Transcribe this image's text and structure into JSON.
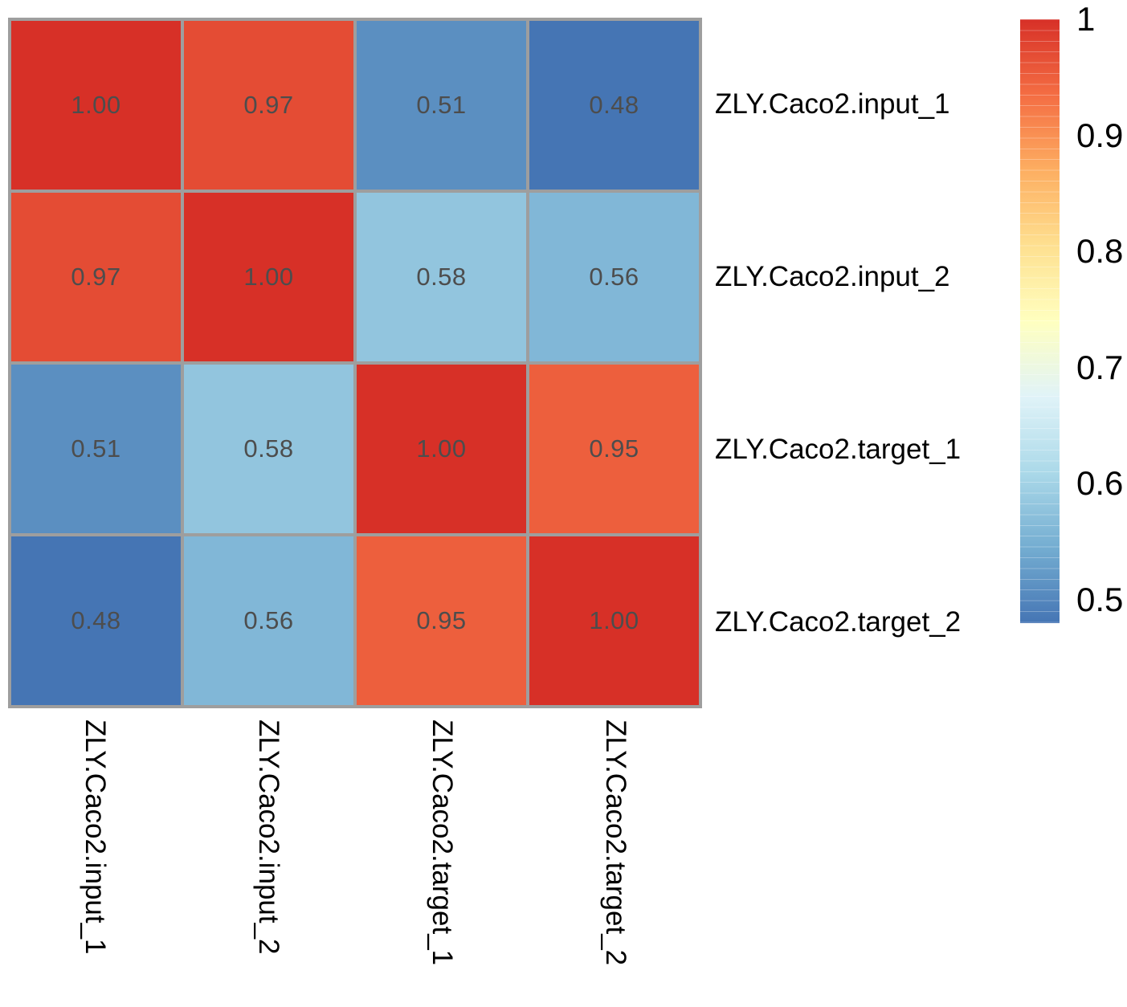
{
  "chart_data": {
    "type": "heatmap",
    "title": "",
    "xlabel": "",
    "ylabel": "",
    "labels": [
      "ZLY.Caco2.input_1",
      "ZLY.Caco2.input_2",
      "ZLY.Caco2.target_1",
      "ZLY.Caco2.target_2"
    ],
    "matrix": [
      [
        1.0,
        0.97,
        0.51,
        0.48
      ],
      [
        0.97,
        1.0,
        0.58,
        0.56
      ],
      [
        0.51,
        0.58,
        1.0,
        0.95
      ],
      [
        0.48,
        0.56,
        0.95,
        1.0
      ]
    ],
    "values_text": [
      [
        "1.00",
        "0.97",
        "0.51",
        "0.48"
      ],
      [
        "0.97",
        "1.00",
        "0.58",
        "0.56"
      ],
      [
        "0.51",
        "0.58",
        "1.00",
        "0.95"
      ],
      [
        "0.48",
        "0.56",
        "0.95",
        "1.00"
      ]
    ],
    "colorbar": {
      "min": 0.48,
      "max": 1.0,
      "ticks": [
        {
          "label": "1",
          "value": 1.0
        },
        {
          "label": "0.9",
          "value": 0.9
        },
        {
          "label": "0.8",
          "value": 0.8
        },
        {
          "label": "0.7",
          "value": 0.7
        },
        {
          "label": "0.6",
          "value": 0.6
        },
        {
          "label": "0.5",
          "value": 0.5
        }
      ],
      "palette_name": "RdYlBu-reversed",
      "palette_stops_low_to_high": [
        "#4575b4",
        "#74add1",
        "#abd9e9",
        "#e0f3f8",
        "#ffffbf",
        "#fee090",
        "#fdae61",
        "#f46d43",
        "#d73027"
      ]
    },
    "colors": {
      "grid_line": "#9e9e9e",
      "cell_text": "#4d4d4d",
      "label_text": "#000000",
      "background": "#ffffff"
    },
    "legend_position": "right",
    "grid_on": true
  }
}
